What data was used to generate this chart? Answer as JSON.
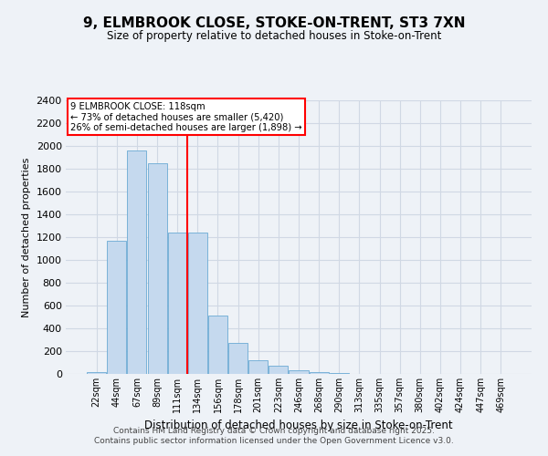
{
  "title": "9, ELMBROOK CLOSE, STOKE-ON-TRENT, ST3 7XN",
  "subtitle": "Size of property relative to detached houses in Stoke-on-Trent",
  "xlabel": "Distribution of detached houses by size in Stoke-on-Trent",
  "ylabel": "Number of detached properties",
  "bin_labels": [
    "22sqm",
    "44sqm",
    "67sqm",
    "89sqm",
    "111sqm",
    "134sqm",
    "156sqm",
    "178sqm",
    "201sqm",
    "223sqm",
    "246sqm",
    "268sqm",
    "290sqm",
    "313sqm",
    "335sqm",
    "357sqm",
    "380sqm",
    "402sqm",
    "424sqm",
    "447sqm",
    "469sqm"
  ],
  "bar_values": [
    20,
    1170,
    1960,
    1850,
    1240,
    1240,
    510,
    270,
    120,
    70,
    30,
    15,
    5,
    3,
    2,
    1,
    0.5,
    0,
    0,
    0,
    0
  ],
  "bar_color": "#c5d9ee",
  "bar_edgecolor": "#6aaad4",
  "vline_index": 5,
  "annotation_title": "9 ELMBROOK CLOSE: 118sqm",
  "annotation_line1": "← 73% of detached houses are smaller (5,420)",
  "annotation_line2": "26% of semi-detached houses are larger (1,898) →",
  "ylim": [
    0,
    2400
  ],
  "yticks": [
    0,
    200,
    400,
    600,
    800,
    1000,
    1200,
    1400,
    1600,
    1800,
    2000,
    2200,
    2400
  ],
  "background_color": "#eef2f7",
  "grid_color": "#d0d8e4",
  "footer_line1": "Contains HM Land Registry data © Crown copyright and database right 2025.",
  "footer_line2": "Contains public sector information licensed under the Open Government Licence v3.0."
}
